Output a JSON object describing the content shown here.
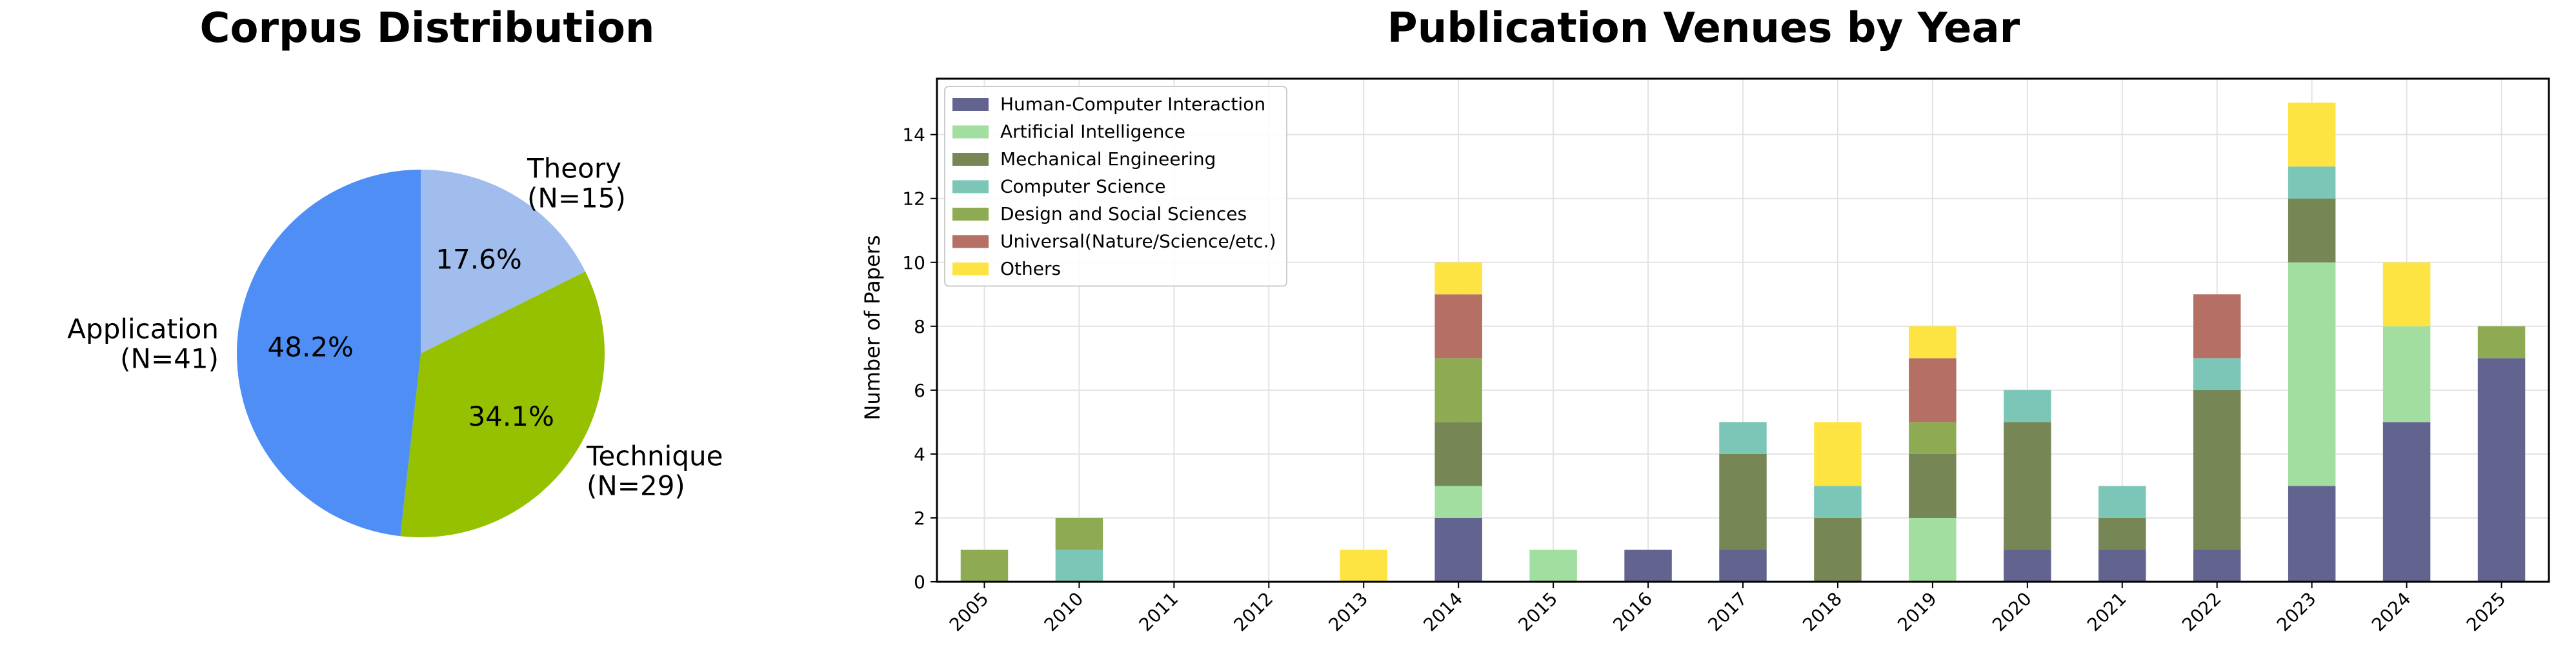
{
  "chart_data": [
    {
      "type": "pie",
      "title": "Corpus Distribution",
      "slices": [
        {
          "label": "Theory",
          "count_label": "(N=15)",
          "value": 15,
          "percent_label": "17.6%",
          "color": "#a0bdee"
        },
        {
          "label": "Technique",
          "count_label": "(N=29)",
          "value": 29,
          "percent_label": "34.1%",
          "color": "#95c101"
        },
        {
          "label": "Application",
          "count_label": "(N=41)",
          "value": 41,
          "percent_label": "48.2%",
          "color": "#4f8ff5"
        }
      ],
      "start_angle_deg": 90,
      "direction": "clockwise"
    },
    {
      "type": "bar",
      "stacked": true,
      "title": "Publication Venues by Year",
      "xlabel": "",
      "ylabel": "Number of Papers",
      "ylim": [
        0,
        15.75
      ],
      "yticks": [
        0,
        2,
        4,
        6,
        8,
        10,
        12,
        14
      ],
      "grid": true,
      "legend": "top-left",
      "categories": [
        "2005",
        "2010",
        "2011",
        "2012",
        "2013",
        "2014",
        "2015",
        "2016",
        "2017",
        "2018",
        "2019",
        "2020",
        "2021",
        "2022",
        "2023",
        "2024",
        "2025"
      ],
      "series": [
        {
          "name": "Human-Computer Interaction",
          "color": "#63638f",
          "values": [
            0,
            0,
            0,
            0,
            0,
            2,
            0,
            1,
            1,
            0,
            0,
            1,
            1,
            1,
            3,
            5,
            7
          ]
        },
        {
          "name": "Artificial Intelligence",
          "color": "#a1de9f",
          "values": [
            0,
            0,
            0,
            0,
            0,
            1,
            1,
            0,
            0,
            0,
            2,
            0,
            0,
            0,
            7,
            3,
            0
          ]
        },
        {
          "name": "Mechanical Engineering",
          "color": "#768755",
          "values": [
            0,
            0,
            0,
            0,
            0,
            2,
            0,
            0,
            3,
            2,
            2,
            4,
            1,
            5,
            2,
            0,
            0
          ]
        },
        {
          "name": "Computer Science",
          "color": "#7cc6b8",
          "values": [
            0,
            1,
            0,
            0,
            0,
            0,
            0,
            0,
            1,
            1,
            0,
            1,
            1,
            1,
            1,
            0,
            0
          ]
        },
        {
          "name": "Design and Social Sciences",
          "color": "#8eaa52",
          "values": [
            1,
            1,
            0,
            0,
            0,
            2,
            0,
            0,
            0,
            0,
            1,
            0,
            0,
            0,
            0,
            0,
            1
          ]
        },
        {
          "name": "Universal(Nature/Science/etc.)",
          "color": "#b66f64",
          "values": [
            0,
            0,
            0,
            0,
            0,
            2,
            0,
            0,
            0,
            0,
            2,
            0,
            0,
            2,
            0,
            0,
            0
          ]
        },
        {
          "name": "Others",
          "color": "#fee442",
          "values": [
            0,
            0,
            0,
            0,
            1,
            1,
            0,
            0,
            0,
            2,
            1,
            0,
            0,
            0,
            2,
            2,
            0
          ]
        }
      ]
    }
  ]
}
